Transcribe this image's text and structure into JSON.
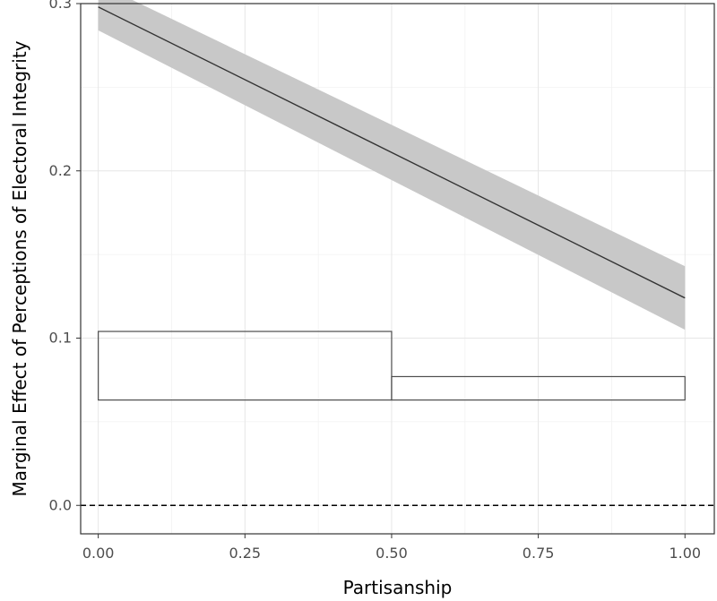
{
  "chart_data": {
    "type": "line",
    "title": "",
    "xlabel": "Partisanship",
    "ylabel": "Marginal Effect of Perceptions of Electoral Integrity",
    "xlim": [
      -0.03,
      1.05
    ],
    "ylim": [
      -0.017,
      0.3
    ],
    "x_ticks": [
      0.0,
      0.25,
      0.5,
      0.75,
      1.0
    ],
    "x_tick_labels": [
      "0.00",
      "0.25",
      "0.50",
      "0.75",
      "1.00"
    ],
    "y_ticks": [
      0.0,
      0.1,
      0.2,
      0.3
    ],
    "y_tick_labels": [
      "0.0",
      "0.1",
      "0.2",
      "0.3"
    ],
    "grid": true,
    "series": [
      {
        "x": [
          0.0,
          1.0
        ],
        "y": [
          0.298,
          0.124
        ],
        "ci_lower": [
          0.284,
          0.105
        ],
        "ci_upper": [
          0.312,
          0.143
        ]
      }
    ],
    "reference_line": {
      "y": 0.0,
      "style": "dashed"
    },
    "histogram": {
      "base": 0.063,
      "bins": [
        {
          "x0": 0.0,
          "x1": 0.5,
          "top": 0.104
        },
        {
          "x0": 0.5,
          "x1": 1.0,
          "top": 0.077
        }
      ]
    },
    "colors": {
      "line": "#333333",
      "ribbon": "#c8c8c8",
      "grid_major": "#e6e6e6",
      "grid_minor": "#f2f2f2",
      "panel_border": "#333333",
      "hist_stroke": "#4d4d4d"
    }
  }
}
